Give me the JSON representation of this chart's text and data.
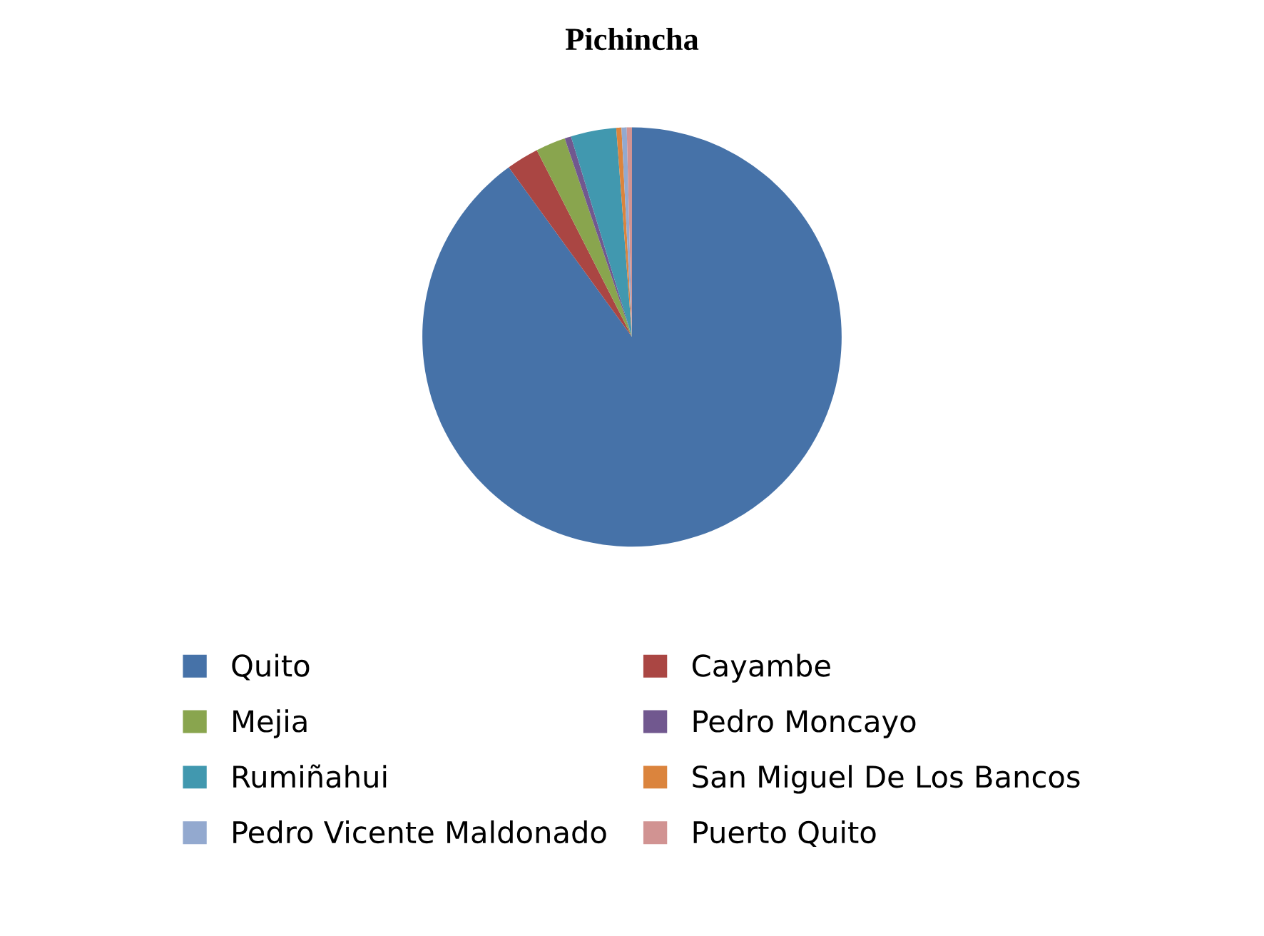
{
  "chart_data": {
    "type": "pie",
    "title": "Pichincha",
    "categories": [
      "Quito",
      "Cayambe",
      "Mejia",
      "Pedro Moncayo",
      "Rumiñahui",
      "San Miguel De Los Bancos",
      "Pedro Vicente Maldonado",
      "Puerto Quito"
    ],
    "values": [
      90,
      2.5,
      2.3,
      0.5,
      3.5,
      0.4,
      0.4,
      0.4
    ],
    "colors": [
      "#4672a8",
      "#aa4643",
      "#89a54e",
      "#71588f",
      "#4198af",
      "#db843d",
      "#93a9cf",
      "#d19392"
    ],
    "legend": "bottom"
  }
}
